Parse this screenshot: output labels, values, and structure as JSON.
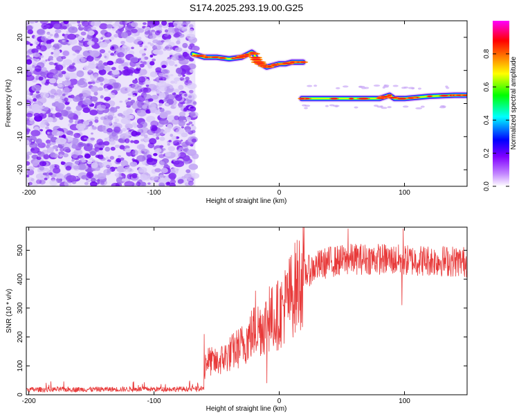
{
  "title": "S174.2025.293.19.00.G25",
  "chart_data": [
    {
      "type": "heatmap",
      "name": "spectrogram",
      "xlabel": "Height of straight line (km)",
      "ylabel": "Frequency (Hz)",
      "xlim": [
        -202,
        150
      ],
      "ylim": [
        -25,
        25
      ],
      "xticks": [
        -200,
        -100,
        0,
        100
      ],
      "yticks": [
        20,
        10,
        0,
        -10,
        -20
      ],
      "noise_region": [
        -202,
        -67
      ],
      "segments": [
        {
          "x": [
            -69,
            -60,
            -50,
            -40,
            -30,
            -22,
            -20,
            -18,
            -15,
            -10,
            -5,
            0,
            5,
            10,
            15,
            19
          ],
          "freq": [
            15,
            14,
            14,
            13.5,
            14,
            15.5,
            15,
            13,
            12,
            11,
            11.5,
            12,
            12,
            12.5,
            12.5,
            12.5
          ]
        },
        {
          "x": [
            18,
            40,
            60,
            80,
            88,
            92,
            100,
            120,
            140,
            150
          ],
          "freq": [
            1.5,
            1.5,
            1.5,
            1.5,
            2.5,
            1.5,
            1.5,
            2.2,
            2.5,
            2.5
          ]
        }
      ],
      "colorbar": {
        "label": "Normalized spectral amplitude",
        "ticks": [
          "0.0",
          "0.2",
          "0.4",
          "0.6",
          "0.8"
        ],
        "range": [
          0,
          1
        ],
        "colors": [
          "#ffffff",
          "#8000ff",
          "#0000ff",
          "#00ffff",
          "#00ff00",
          "#ffff00",
          "#ff8000",
          "#ff0000",
          "#ff00ff"
        ]
      }
    },
    {
      "type": "line",
      "name": "snr",
      "xlabel": "Height of straight line (km)",
      "ylabel": "SNR (10 * v/v)",
      "xlim": [
        -202,
        150
      ],
      "ylim": [
        0,
        580
      ],
      "xticks": [
        -200,
        -100,
        0,
        100
      ],
      "yticks": [
        0,
        100,
        200,
        300,
        400,
        500
      ],
      "color": "#e83a3a",
      "envelope": {
        "x": [
          -202,
          -60,
          -59,
          -50,
          -40,
          -30,
          -20,
          -10,
          0,
          10,
          20,
          30,
          40,
          60,
          80,
          100,
          120,
          150
        ],
        "y": [
          18,
          20,
          120,
          110,
          140,
          170,
          220,
          250,
          280,
          350,
          420,
          445,
          460,
          470,
          470,
          465,
          465,
          460
        ]
      },
      "spikes": [
        {
          "x": -60,
          "y": 210
        },
        {
          "x": -19,
          "y": 360
        },
        {
          "x": -8,
          "y": 375
        },
        {
          "x": 55,
          "y": 575
        },
        {
          "x": 99,
          "y": 575
        },
        {
          "x": 98,
          "y": 310
        },
        {
          "x": -10,
          "y": 40
        }
      ]
    }
  ]
}
